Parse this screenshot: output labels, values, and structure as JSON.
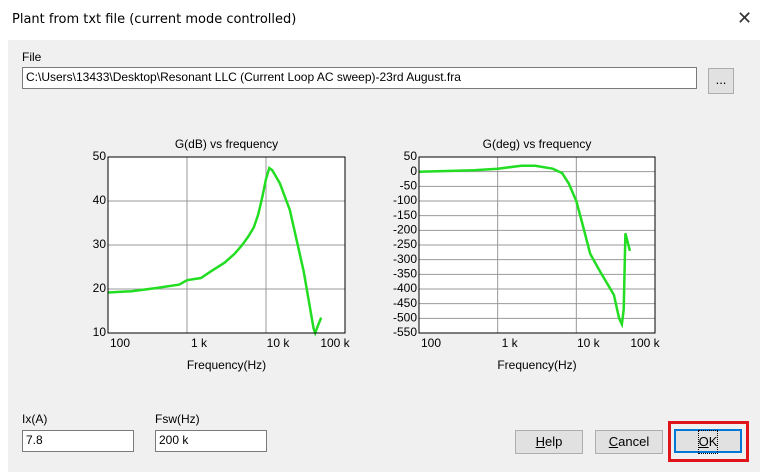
{
  "window_title": "Plant from txt file (current mode controlled)",
  "file_label": "File",
  "file_path": "C:\\Users\\13433\\Desktop\\Resonant LLC (Current Loop AC sweep)-23rd August.fra",
  "browse_button": "...",
  "ix_label": "Ix(A)",
  "ix_value": "7.8",
  "fsw_label": "Fsw(Hz)",
  "fsw_value": "200 k",
  "help_button": "Help",
  "cancel_button": "Cancel",
  "ok_button": "OK",
  "chart_data": [
    {
      "type": "line",
      "title": "G(dB) vs frequency",
      "x_label": "Frequency(Hz)",
      "x_scale": "log",
      "grid": true,
      "color": "#22dd22",
      "xlim": [
        100,
        100000
      ],
      "xticks": [
        {
          "value": 100,
          "label": "100"
        },
        {
          "value": 1000,
          "label": "1 k"
        },
        {
          "value": 10000,
          "label": "10 k"
        },
        {
          "value": 100000,
          "label": "100 k"
        }
      ],
      "ylim": [
        10,
        50
      ],
      "yticks": [
        10,
        20,
        30,
        40,
        50
      ],
      "x": [
        100,
        200,
        400,
        800,
        1000,
        1500,
        2000,
        3000,
        4000,
        5000,
        6000,
        7000,
        8000,
        9000,
        10000,
        11000,
        12000,
        15000,
        20000,
        30000,
        40000,
        42000,
        45000,
        50000
      ],
      "values": [
        19.2,
        19.5,
        20.2,
        21,
        22,
        22.5,
        24,
        26,
        28,
        30,
        32,
        34,
        37,
        41,
        45,
        47.5,
        47,
        44,
        38,
        24,
        11,
        10,
        11.5,
        13.5
      ]
    },
    {
      "type": "line",
      "title": "G(deg) vs frequency",
      "x_label": "Frequency(Hz)",
      "x_scale": "log",
      "grid": true,
      "color": "#22dd22",
      "xlim": [
        100,
        100000
      ],
      "xticks": [
        {
          "value": 100,
          "label": "100"
        },
        {
          "value": 1000,
          "label": "1 k"
        },
        {
          "value": 10000,
          "label": "10 k"
        },
        {
          "value": 100000,
          "label": "100 k"
        }
      ],
      "ylim": [
        -550,
        50
      ],
      "yticks": [
        -550,
        -500,
        -450,
        -400,
        -350,
        -300,
        -250,
        -200,
        -150,
        -100,
        -50,
        0,
        50
      ],
      "x": [
        100,
        500,
        1000,
        2000,
        3000,
        5000,
        6600,
        8000,
        10000,
        12000,
        15000,
        20000,
        30000,
        35000,
        38000,
        40000,
        42000,
        45000,
        48000
      ],
      "values": [
        0,
        5,
        10,
        20,
        20,
        10,
        -5,
        -40,
        -100,
        -180,
        -280,
        -340,
        -420,
        -500,
        -520,
        -470,
        -210,
        -240,
        -270
      ]
    }
  ]
}
